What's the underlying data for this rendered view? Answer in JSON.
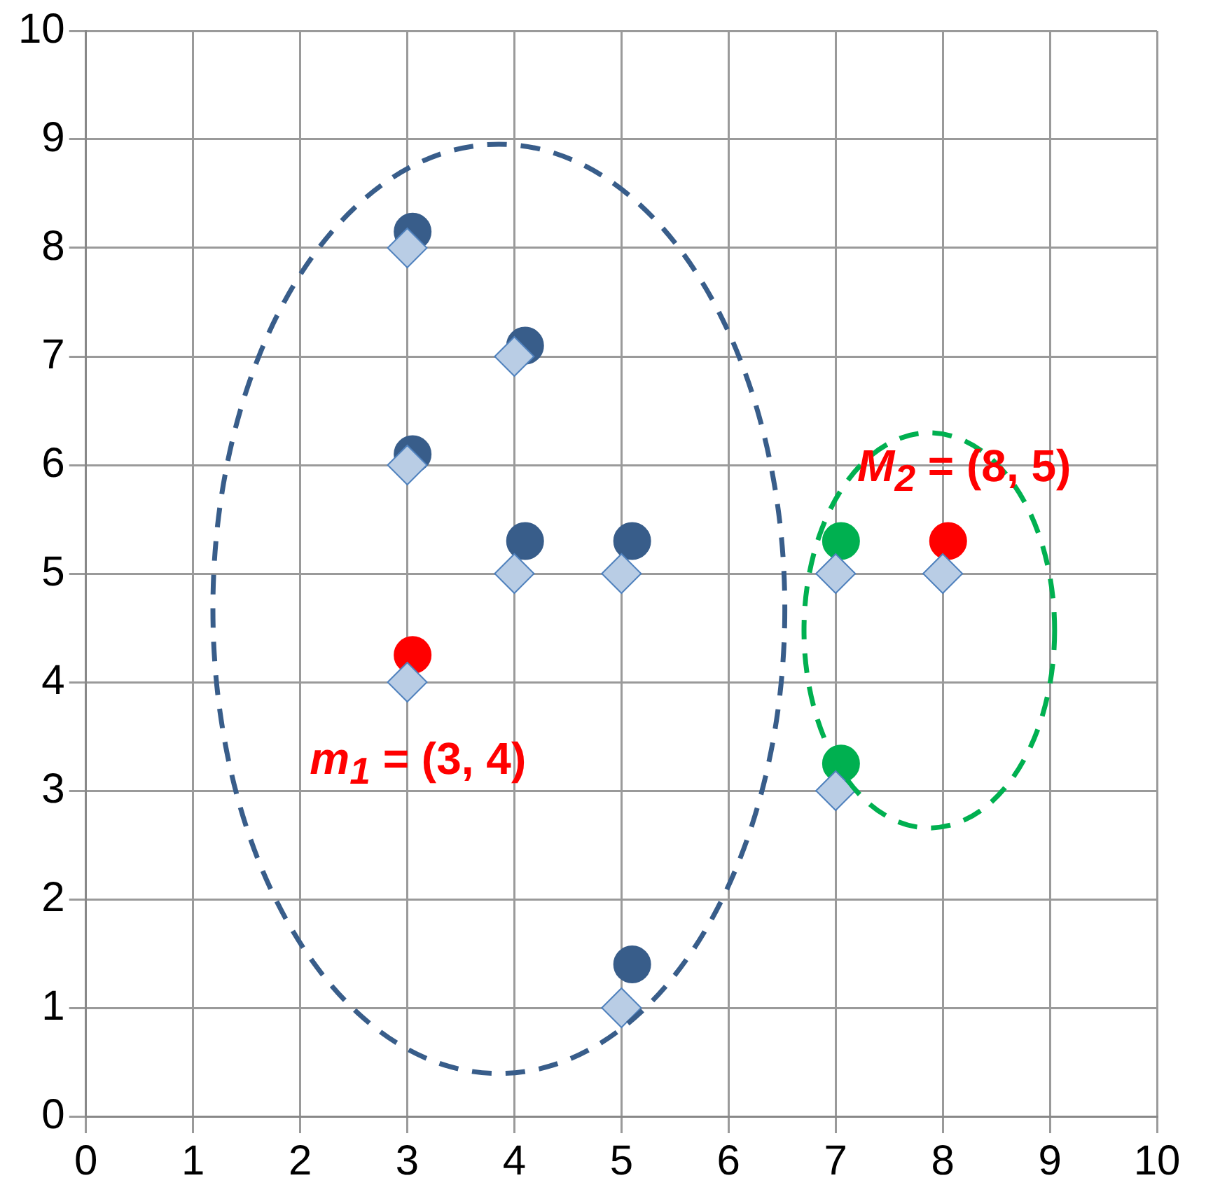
{
  "chart_data": {
    "type": "scatter",
    "xlim": [
      0,
      10
    ],
    "ylim": [
      0,
      10
    ],
    "xticks": [
      0,
      1,
      2,
      3,
      4,
      5,
      6,
      7,
      8,
      9,
      10
    ],
    "yticks": [
      0,
      1,
      2,
      3,
      4,
      5,
      6,
      7,
      8,
      9,
      10
    ],
    "grid": true,
    "legend": false,
    "series": [
      {
        "color": "#b9cde5",
        "marker": "diamond",
        "x": [
          3,
          4,
          3,
          4,
          5,
          3,
          5,
          7,
          8,
          7
        ],
        "values": [
          8,
          7,
          6,
          5,
          5,
          4,
          1,
          5,
          5,
          3
        ]
      },
      {
        "color": "#385d8a",
        "marker": "circle",
        "x": [
          3.05,
          4.1,
          3.05,
          4.1,
          5.1,
          5.1
        ],
        "values": [
          8.15,
          7.1,
          6.1,
          5.3,
          5.3,
          1.4
        ]
      },
      {
        "color": "#ff0000",
        "marker": "circle",
        "x": [
          3.05,
          8.05
        ],
        "values": [
          4.25,
          5.3
        ]
      },
      {
        "color": "#00b050",
        "marker": "circle",
        "x": [
          7.05,
          7.05
        ],
        "values": [
          5.3,
          3.25
        ]
      }
    ],
    "annotations": [
      {
        "text": "m$_{1}$ = (3, 4)",
        "x": 3,
        "y": 4
      },
      {
        "text": "M$_{2}$ = (8, 5)",
        "x": 8,
        "y": 5
      }
    ]
  }
}
